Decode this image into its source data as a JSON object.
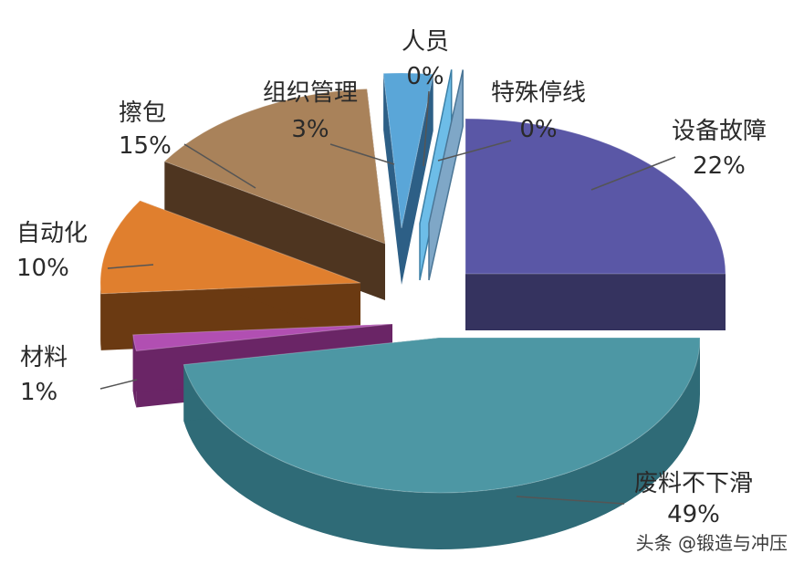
{
  "chart_data": {
    "type": "pie",
    "title": "",
    "slices": [
      {
        "name": "设备故障",
        "value_label": "22%",
        "value": 22,
        "color": "#5a57a6",
        "side_color": "#35335f"
      },
      {
        "name": "废料不下滑",
        "value_label": "49%",
        "value": 49,
        "color": "#4d97a4",
        "side_color": "#2f6b77"
      },
      {
        "name": "材料",
        "value_label": "1%",
        "value": 1,
        "color": "#b14fb2",
        "side_color": "#6a2566"
      },
      {
        "name": "自动化",
        "value_label": "10%",
        "value": 10,
        "color": "#e07f2e",
        "side_color": "#6b3a12"
      },
      {
        "name": "擦包",
        "value_label": "15%",
        "value": 15,
        "color": "#a9825a",
        "side_color": "#4e3520"
      },
      {
        "name": "组织管理",
        "value_label": "3%",
        "value": 3,
        "color": "#5aa6d8",
        "side_color": "#2d5f86"
      },
      {
        "name": "人员",
        "value_label": "0%",
        "value": 0,
        "color": "#6dbde8",
        "side_color": "#3b7fa6"
      },
      {
        "name": "特殊停线",
        "value_label": "0%",
        "value": 0,
        "color": "#7fa7c7",
        "side_color": "#4b7696"
      }
    ],
    "style": "3d-exploded"
  },
  "watermark": "头条 @锻造与冲压"
}
